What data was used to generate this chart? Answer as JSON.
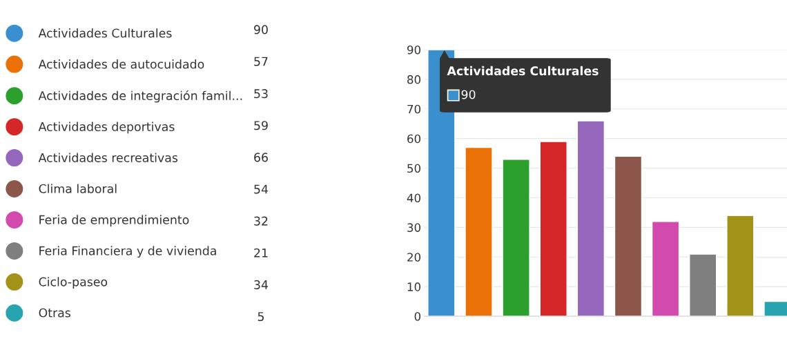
{
  "chart_data": {
    "type": "bar",
    "categories": [
      null,
      null,
      null,
      null,
      null,
      null,
      null,
      null,
      null,
      null
    ],
    "series": [
      {
        "name": "Actividades Culturales",
        "color": "#3a90cf",
        "values": [
          90,
          null,
          null,
          null,
          null,
          null,
          null,
          null,
          null,
          null
        ]
      },
      {
        "name": "Actividades de autocuidado",
        "color": "#ea7107",
        "values": [
          null,
          57,
          null,
          null,
          null,
          null,
          null,
          null,
          null,
          null
        ]
      },
      {
        "name": "Actividades de integración famil...",
        "color": "#2ca02c",
        "values": [
          null,
          null,
          53,
          null,
          null,
          null,
          null,
          null,
          null,
          null
        ]
      },
      {
        "name": "Actividades deportivas",
        "color": "#d62728",
        "values": [
          null,
          null,
          null,
          59,
          null,
          null,
          null,
          null,
          null,
          null
        ]
      },
      {
        "name": "Actividades recreativas",
        "color": "#9467bd",
        "values": [
          null,
          null,
          null,
          null,
          66,
          null,
          null,
          null,
          null,
          null
        ]
      },
      {
        "name": "Clima laboral",
        "color": "#8c564b",
        "values": [
          null,
          null,
          null,
          null,
          null,
          54,
          null,
          null,
          null,
          null
        ]
      },
      {
        "name": "Feria de emprendimiento",
        "color": "#d24aae",
        "values": [
          null,
          null,
          null,
          null,
          null,
          null,
          32,
          null,
          null,
          null
        ]
      },
      {
        "name": "Feria Financiera y de vivienda",
        "color": "#7f7f7f",
        "values": [
          null,
          null,
          null,
          null,
          null,
          null,
          null,
          21,
          null,
          null
        ]
      },
      {
        "name": "Ciclo-paseo",
        "color": "#a39218",
        "values": [
          null,
          null,
          null,
          null,
          null,
          null,
          null,
          null,
          34,
          null
        ]
      },
      {
        "name": "Otras",
        "color": "#28a4b0",
        "values": [
          null,
          null,
          null,
          null,
          null,
          null,
          null,
          null,
          null,
          5
        ]
      }
    ],
    "ylim": [
      0,
      90
    ],
    "yticks": [
      0,
      10,
      20,
      30,
      40,
      50,
      60,
      70,
      80,
      90
    ],
    "grid": "y",
    "legend": "left",
    "tick_labels": "y",
    "annotations": [
      "Actividades Culturales",
      "90",
      "90",
      "57",
      "53",
      "59",
      "66",
      "54",
      "32",
      "21",
      "34",
      "5"
    ]
  }
}
